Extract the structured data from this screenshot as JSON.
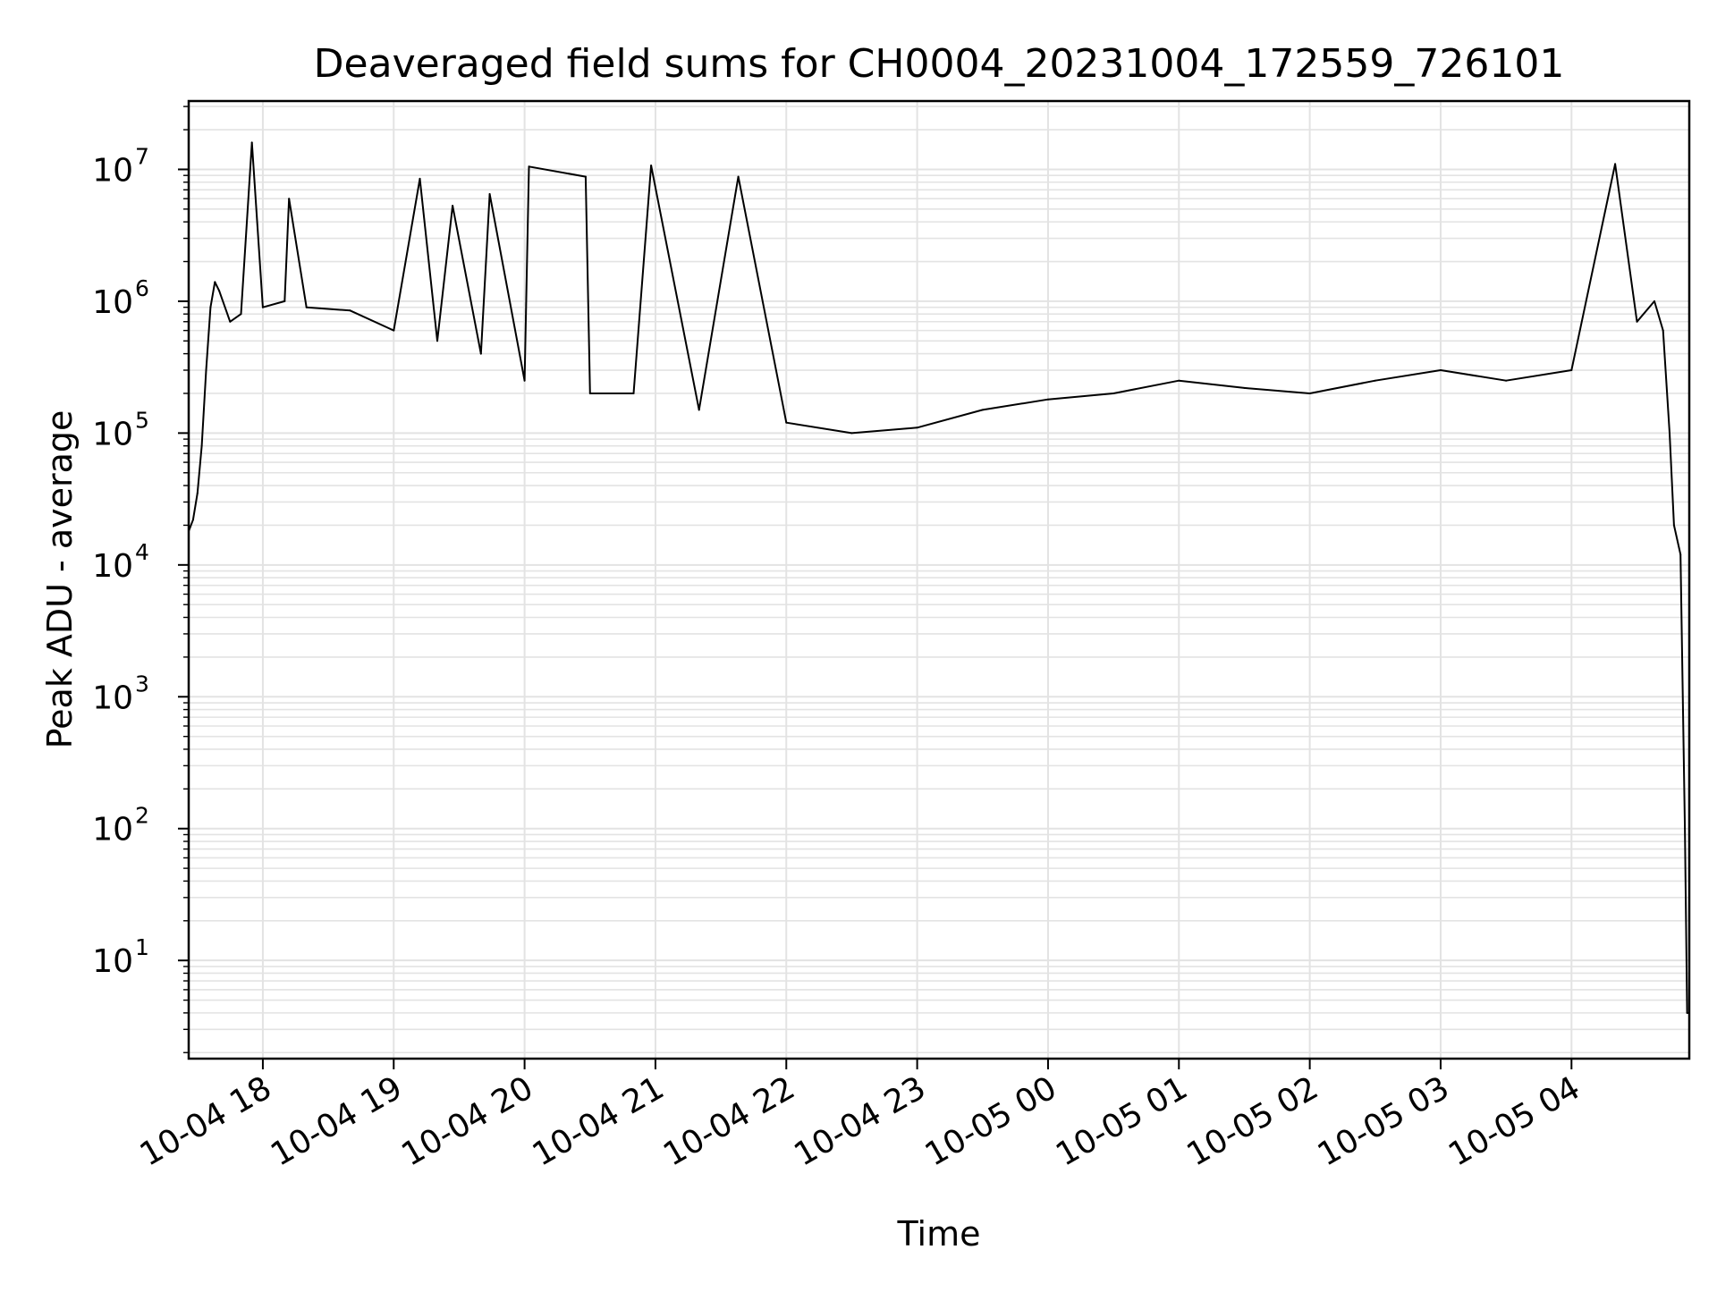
{
  "chart_data": {
    "type": "line",
    "title": "Deaveraged field sums for CH0004_20231004_172559_726101",
    "xlabel": "Time",
    "ylabel": "Peak ADU - average",
    "yscale": "log",
    "xlim": [
      "2023-10-04 17:26",
      "2023-10-05 04:54"
    ],
    "ylim": [
      1.8,
      33000000
    ],
    "grid": true,
    "legend": "none",
    "line_color": "#000000",
    "x_ticks": [
      {
        "value": "2023-10-04 18:00",
        "label": "10-04 18"
      },
      {
        "value": "2023-10-04 19:00",
        "label": "10-04 19"
      },
      {
        "value": "2023-10-04 20:00",
        "label": "10-04 20"
      },
      {
        "value": "2023-10-04 21:00",
        "label": "10-04 21"
      },
      {
        "value": "2023-10-04 22:00",
        "label": "10-04 22"
      },
      {
        "value": "2023-10-04 23:00",
        "label": "10-04 23"
      },
      {
        "value": "2023-10-05 00:00",
        "label": "10-05 00"
      },
      {
        "value": "2023-10-05 01:00",
        "label": "10-05 01"
      },
      {
        "value": "2023-10-05 02:00",
        "label": "10-05 02"
      },
      {
        "value": "2023-10-05 03:00",
        "label": "10-05 03"
      },
      {
        "value": "2023-10-05 04:00",
        "label": "10-05 04"
      }
    ],
    "y_ticks": [
      {
        "value": 10,
        "base": "10",
        "exp": "1"
      },
      {
        "value": 100,
        "base": "10",
        "exp": "2"
      },
      {
        "value": 1000,
        "base": "10",
        "exp": "3"
      },
      {
        "value": 10000,
        "base": "10",
        "exp": "4"
      },
      {
        "value": 100000,
        "base": "10",
        "exp": "5"
      },
      {
        "value": 1000000,
        "base": "10",
        "exp": "6"
      },
      {
        "value": 10000000,
        "base": "10",
        "exp": "7"
      }
    ],
    "series": [
      {
        "points": [
          [
            "2023-10-04 17:26",
            18000
          ],
          [
            "2023-10-04 17:28",
            22000
          ],
          [
            "2023-10-04 17:30",
            35000
          ],
          [
            "2023-10-04 17:32",
            80000
          ],
          [
            "2023-10-04 17:34",
            300000
          ],
          [
            "2023-10-04 17:36",
            900000
          ],
          [
            "2023-10-04 17:38",
            1400000
          ],
          [
            "2023-10-04 17:40",
            1200000
          ],
          [
            "2023-10-04 17:45",
            700000
          ],
          [
            "2023-10-04 17:50",
            800000
          ],
          [
            "2023-10-04 17:55",
            16000000
          ],
          [
            "2023-10-04 18:00",
            900000
          ],
          [
            "2023-10-04 18:10",
            1000000
          ],
          [
            "2023-10-04 18:12",
            6000000
          ],
          [
            "2023-10-04 18:20",
            900000
          ],
          [
            "2023-10-04 18:40",
            850000
          ],
          [
            "2023-10-04 19:00",
            600000
          ],
          [
            "2023-10-04 19:12",
            8500000
          ],
          [
            "2023-10-04 19:20",
            500000
          ],
          [
            "2023-10-04 19:27",
            5300000
          ],
          [
            "2023-10-04 19:40",
            400000
          ],
          [
            "2023-10-04 19:44",
            6500000
          ],
          [
            "2023-10-04 20:00",
            250000
          ],
          [
            "2023-10-04 20:02",
            10500000
          ],
          [
            "2023-10-04 20:30",
            200000
          ],
          [
            "2023-10-04 20:28",
            8800000
          ],
          [
            "2023-10-04 20:50",
            200000
          ],
          [
            "2023-10-04 20:58",
            10700000
          ],
          [
            "2023-10-04 21:20",
            150000
          ],
          [
            "2023-10-04 21:38",
            8800000
          ],
          [
            "2023-10-04 22:00",
            120000
          ],
          [
            "2023-10-04 22:30",
            100000
          ],
          [
            "2023-10-04 23:00",
            110000
          ],
          [
            "2023-10-04 23:30",
            150000
          ],
          [
            "2023-10-05 00:00",
            180000
          ],
          [
            "2023-10-05 00:30",
            200000
          ],
          [
            "2023-10-05 01:00",
            250000
          ],
          [
            "2023-10-05 01:30",
            220000
          ],
          [
            "2023-10-05 02:00",
            200000
          ],
          [
            "2023-10-05 02:30",
            250000
          ],
          [
            "2023-10-05 03:00",
            300000
          ],
          [
            "2023-10-05 03:30",
            250000
          ],
          [
            "2023-10-05 04:00",
            300000
          ],
          [
            "2023-10-05 04:20",
            11000000
          ],
          [
            "2023-10-05 04:30",
            700000
          ],
          [
            "2023-10-05 04:38",
            1000000
          ],
          [
            "2023-10-05 04:42",
            600000
          ],
          [
            "2023-10-05 04:45",
            100000
          ],
          [
            "2023-10-05 04:47",
            20000
          ],
          [
            "2023-10-05 04:50",
            12000
          ],
          [
            "2023-10-05 04:52",
            100
          ],
          [
            "2023-10-05 04:53",
            4
          ],
          [
            "2023-10-05 04:54",
            4
          ]
        ]
      }
    ]
  }
}
